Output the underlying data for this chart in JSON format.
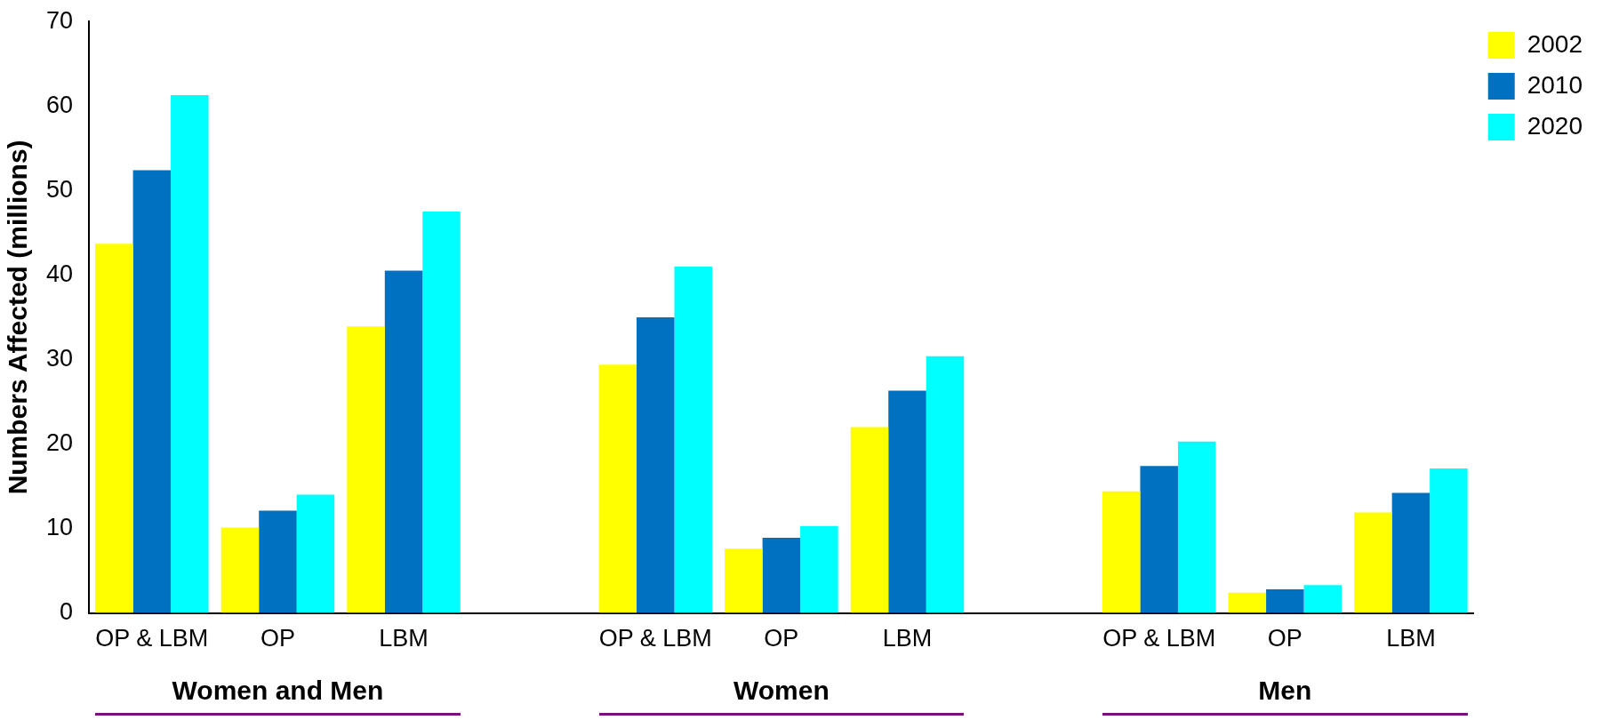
{
  "chart_data": {
    "type": "bar",
    "ylabel": "Numbers Affected (millions)",
    "categories": [
      "OP & LBM",
      "OP",
      "LBM",
      null,
      "OP & LBM",
      "OP",
      "LBM",
      null,
      "OP & LBM",
      "OP",
      "LBM"
    ],
    "series": [
      {
        "name": "2002",
        "color": "#ffff00",
        "values": [
          43.7,
          10.1,
          33.9,
          null,
          29.4,
          7.6,
          22.0,
          null,
          14.4,
          2.4,
          11.9
        ]
      },
      {
        "name": "2010",
        "color": "#0070c0",
        "values": [
          52.4,
          12.1,
          40.5,
          null,
          35.0,
          8.9,
          26.3,
          null,
          17.4,
          2.8,
          14.2
        ]
      },
      {
        "name": "2020",
        "color": "#00ffff",
        "values": [
          61.3,
          14.0,
          47.5,
          null,
          41.0,
          10.3,
          30.4,
          null,
          20.3,
          3.3,
          17.1
        ]
      }
    ],
    "ylim": [
      0,
      70
    ],
    "yticks": [
      0,
      10,
      20,
      30,
      40,
      50,
      60,
      70
    ],
    "annotations": [
      "Women and Men",
      "Women",
      "Men"
    ],
    "grid": false,
    "legend": "top right"
  }
}
